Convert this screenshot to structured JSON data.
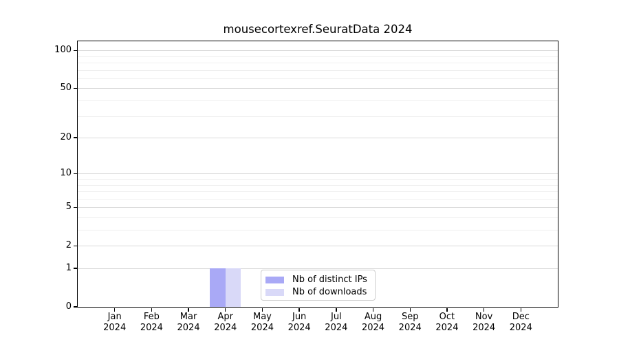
{
  "chart_data": {
    "type": "bar",
    "title": "mousecortexref.SeuratData 2024",
    "categories": [
      "Jan",
      "Feb",
      "Mar",
      "Apr",
      "May",
      "Jun",
      "Jul",
      "Aug",
      "Sep",
      "Oct",
      "Nov",
      "Dec"
    ],
    "year_label": "2024",
    "series": [
      {
        "name": "Nb of distinct IPs",
        "color": "#a9a9f6",
        "values": [
          0,
          0,
          0,
          1,
          0,
          0,
          0,
          0,
          0,
          0,
          0,
          0
        ]
      },
      {
        "name": "Nb of downloads",
        "color": "#d9d9f8",
        "values": [
          0,
          0,
          0,
          1,
          0,
          0,
          0,
          0,
          0,
          0,
          0,
          0
        ]
      }
    ],
    "xlabel": "",
    "ylabel": "",
    "yscale": "log1p",
    "ylim": [
      0,
      118
    ],
    "yticks": [
      0,
      1,
      2,
      5,
      10,
      20,
      50,
      100
    ],
    "minor_yticks": [
      3,
      4,
      6,
      7,
      8,
      9,
      30,
      40,
      60,
      70,
      80,
      90
    ],
    "grid": "horizontal",
    "legend": {
      "position": "inside-bottom-center"
    },
    "colors": {
      "major_grid": "#d9d9d9",
      "minor_grid": "#efefef",
      "axis": "#000000",
      "text": "#000000",
      "legend_border": "#cccccc",
      "legend_bg": "#ffffff"
    }
  }
}
